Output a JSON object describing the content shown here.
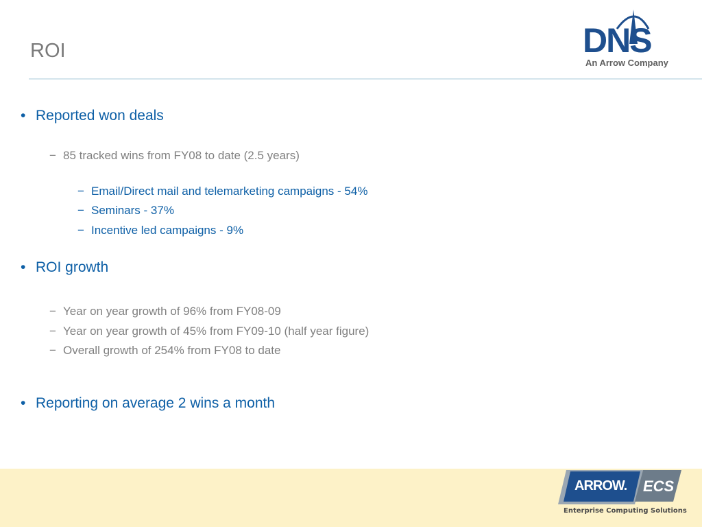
{
  "slide": {
    "title": "ROI"
  },
  "logos": {
    "dns": {
      "name": "DNS",
      "tagline": "An Arrow Company"
    },
    "arrow_ecs": {
      "brand": "ARROW.",
      "product": "ECS",
      "tagline": "Enterprise Computing Solutions"
    }
  },
  "colors": {
    "heading_blue": "#0d5fa6",
    "body_gray": "#7f7f7f",
    "footer_band": "#fdf2c8",
    "logo_navy": "#1e4f8e"
  },
  "bullets": [
    {
      "text": "Reported won deals",
      "children": [
        {
          "text": "85 tracked wins from FY08 to date (2.5 years)",
          "children": [
            {
              "text": "Email/Direct mail and telemarketing campaigns - 54%"
            },
            {
              "text": "Seminars - 37%"
            },
            {
              "text": "Incentive led campaigns  - 9%"
            }
          ]
        }
      ]
    },
    {
      "text": "ROI growth",
      "children": [
        {
          "text": "Year on year growth of 96% from FY08-09"
        },
        {
          "text": "Year on year growth of 45% from FY09-10 (half year figure)"
        },
        {
          "text": "Overall growth of 254% from FY08 to date"
        }
      ]
    },
    {
      "text": "Reporting on average 2 wins a month"
    }
  ],
  "markers": {
    "bullet": "•",
    "dash": "−"
  }
}
